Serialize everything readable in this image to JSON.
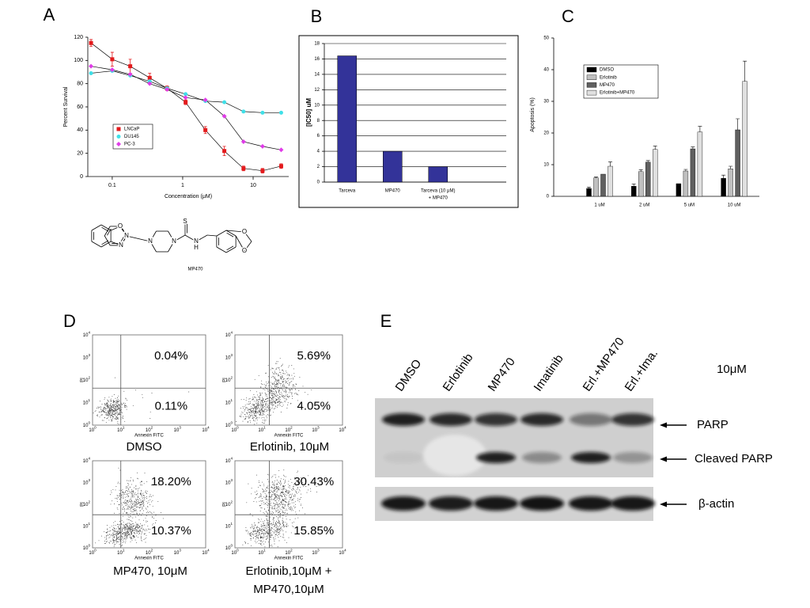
{
  "panel_labels": [
    "A",
    "B",
    "C",
    "D",
    "E"
  ],
  "chart_data": [
    {
      "type": "scatter",
      "x_label": "Concentration (μM)",
      "y_label": "Percent Survival",
      "xscale": "log",
      "xlim": [
        0.045,
        32
      ],
      "xticks": [
        0.1,
        1,
        10
      ],
      "ylim": [
        0,
        120
      ],
      "yticks": [
        0,
        20,
        40,
        60,
        80,
        100,
        120
      ],
      "x": [
        0.05,
        0.1,
        0.18,
        0.34,
        0.6,
        1.1,
        2.1,
        3.9,
        7.3,
        13.6,
        25
      ],
      "legend": "lower left",
      "series": [
        {
          "name": "LNCaP",
          "color": "#e31a1c",
          "marker": "square",
          "values": [
            115,
            101,
            95,
            85,
            76,
            64,
            40,
            22,
            7,
            5,
            9
          ],
          "errors": [
            3,
            6,
            6,
            4,
            2,
            2,
            3,
            4,
            2,
            2,
            2
          ]
        },
        {
          "name": "DU145",
          "color": "#3fe0e8",
          "marker": "circle",
          "values": [
            89,
            91,
            87,
            82,
            76,
            71,
            65,
            64,
            56,
            55,
            55
          ]
        },
        {
          "name": "PC-3",
          "color": "#e03ce8",
          "marker": "diamond",
          "values": [
            95,
            92,
            88,
            80,
            75,
            68,
            66,
            52,
            30,
            26,
            23
          ]
        }
      ]
    },
    {
      "type": "bar",
      "y_label": "[IC50] uM",
      "categories": [
        "Tarceva",
        "MP470",
        [
          "Tarceva (10 μM)",
          "+ MP470"
        ],
        null
      ],
      "values": [
        16.4,
        4,
        2,
        null
      ],
      "color": "#333399",
      "ylim": [
        0,
        18
      ],
      "yticks": [
        0,
        2,
        4,
        6,
        8,
        10,
        12,
        14,
        16,
        18
      ],
      "grid": true
    },
    {
      "type": "grouped_bar",
      "y_label": "Apoptosis (%)",
      "categories": [
        "1 uM",
        "2 uM",
        "5 uM",
        "10 uM"
      ],
      "ylim": [
        0,
        50
      ],
      "yticks": [
        0,
        10,
        20,
        30,
        40,
        50
      ],
      "legend": "upper left",
      "series": [
        {
          "name": "DMSO",
          "color": "#000000",
          "values": [
            2.5,
            3.2,
            4,
            5.7
          ],
          "errors": [
            0.4,
            0.7,
            null,
            1
          ]
        },
        {
          "name": "Erlotinib",
          "color": "#c0c0c0",
          "values": [
            5.8,
            7.8,
            8,
            8.7
          ],
          "errors": [
            0.3,
            0.6,
            0.5,
            0.8
          ]
        },
        {
          "name": "MP470",
          "color": "#606060",
          "values": [
            7,
            10.8,
            15,
            21
          ],
          "errors": [
            null,
            0.5,
            0.6,
            3.5
          ]
        },
        {
          "name": "Erlotinib+MP470",
          "color": "#e0e0e0",
          "values": [
            9.5,
            14.8,
            20.3,
            36.3
          ],
          "errors": [
            1.4,
            1.1,
            1.8,
            6.4
          ]
        }
      ]
    }
  ],
  "structure": {
    "name": "MP470",
    "atoms": [
      "O",
      "N",
      "N",
      "N",
      "N",
      "S",
      "N",
      "H",
      "O",
      "O"
    ]
  },
  "flow": {
    "x_label": "Annexin FITC",
    "y_label": "PI",
    "tick_base": "10",
    "tick_exponents": [
      "0",
      "1",
      "2",
      "3",
      "4"
    ],
    "plots": [
      {
        "label": [
          "DMSO"
        ],
        "upper_right": "0.04%",
        "lower_right": "0.11%"
      },
      {
        "label": [
          "Erlotinib, 10μM"
        ],
        "upper_right": "5.69%",
        "lower_right": "4.05%"
      },
      {
        "label": [
          "MP470, 10μM"
        ],
        "upper_right": "18.20%",
        "lower_right": "10.37%"
      },
      {
        "label": [
          "Erlotinib,10μM +",
          "MP470,10μM"
        ],
        "upper_right": "30.43%",
        "lower_right": "15.85%"
      }
    ]
  },
  "blot": {
    "lanes": [
      "DMSO",
      "Erlotinib",
      "MP470",
      "Imatinib",
      "Erl.+MP470",
      "Erl.+Ima."
    ],
    "concentration": "10μM",
    "bands": [
      "PARP",
      "Cleaved PARP",
      "β-actin"
    ]
  }
}
